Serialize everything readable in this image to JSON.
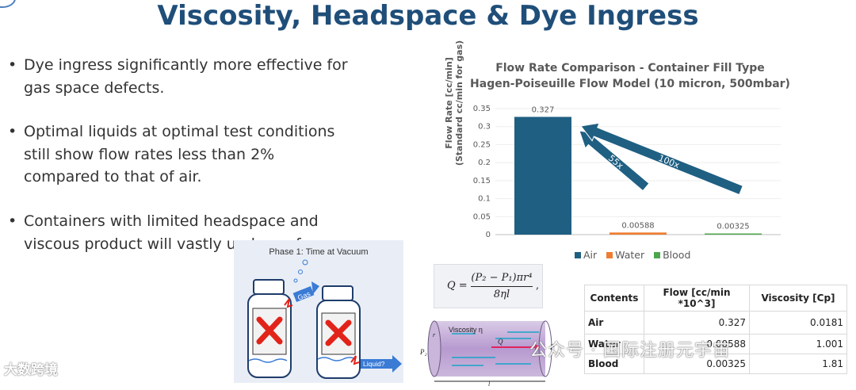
{
  "title": "Viscosity, Headspace & Dye Ingress",
  "bullets": [
    "Dye ingress significantly more effective for gas space defects.",
    "Optimal liquids at optimal test conditions still show flow rates less than 2% compared to that of air.",
    "Containers with limited headspace and viscous product will vastly underperform."
  ],
  "diagram": {
    "title": "Phase 1: Time at Vacuum",
    "gas_label": "Gas",
    "liquid_label": "Liquid?"
  },
  "chart_data": {
    "type": "bar",
    "title": "Flow Rate Comparison - Container Fill Type",
    "subtitle": "Hagen-Poiseuille Flow Model (10 micron, 500mbar)",
    "ylabel": "Flow Rate [cc/min] (Standard cc/min for gas)",
    "categories": [
      "Air",
      "Water",
      "Blood"
    ],
    "values": [
      0.327,
      0.00588,
      0.00325
    ],
    "value_labels": [
      "0.327",
      "0.00588",
      "0.00325"
    ],
    "colors": [
      "#1f5f82",
      "#ed7d31",
      "#4ca64c"
    ],
    "ylim": [
      0,
      0.35
    ],
    "yticks": [
      "0",
      "0.05",
      "0.1",
      "0.15",
      "0.2",
      "0.25",
      "0.3",
      "0.35"
    ],
    "annotations": [
      "55x",
      "100x"
    ],
    "legend": "bottom"
  },
  "formula": {
    "lhs": "Q =",
    "numerator": "(P₂ − P₁)πr⁴",
    "denominator": "8ηl"
  },
  "tube": {
    "viscosity_label": "Viscosity η",
    "q_label": "Q",
    "p1": "P₁",
    "p2": "P₂",
    "r": "r",
    "l": "l"
  },
  "table": {
    "headers": [
      "Contents",
      "Flow [cc/min *10^3]",
      "Viscosity [Cp]"
    ],
    "rows": [
      [
        "Air",
        "0.327",
        "0.0181"
      ],
      [
        "Water",
        "0.00588",
        "1.001"
      ],
      [
        "Blood",
        "0.00325",
        "1.81"
      ]
    ]
  },
  "watermarks": [
    "大数跨境",
    "公众号 · 国际注册元宇宙"
  ]
}
